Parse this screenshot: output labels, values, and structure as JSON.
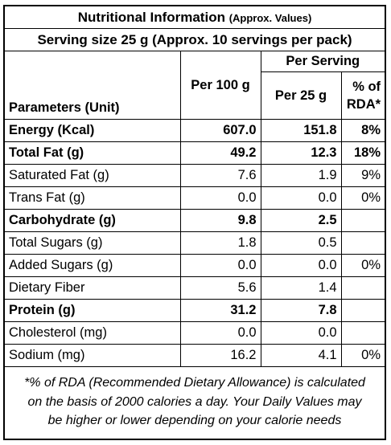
{
  "title": "Nutritional Information",
  "title_note": "(Approx. Values)",
  "serving": "Serving size 25 g (Approx. 10 servings per pack)",
  "headers": {
    "parameters": "Parameters (Unit)",
    "per_100g": "Per 100 g",
    "per_serving": "Per Serving",
    "per_25g": "Per 25 g",
    "rda_line1": "% of",
    "rda_line2": "RDA*"
  },
  "rows": [
    {
      "name": "Energy (Kcal)",
      "per100": "607.0",
      "per25": "151.8",
      "rda": "8%",
      "bold": true
    },
    {
      "name": "Total Fat (g)",
      "per100": "49.2",
      "per25": "12.3",
      "rda": "18%",
      "bold": true
    },
    {
      "name": "Saturated Fat (g)",
      "per100": "7.6",
      "per25": "1.9",
      "rda": "9%",
      "bold": false
    },
    {
      "name": "Trans Fat (g)",
      "per100": "0.0",
      "per25": "0.0",
      "rda": "0%",
      "bold": false
    },
    {
      "name": "Carbohydrate (g)",
      "per100": "9.8",
      "per25": "2.5",
      "rda": "",
      "bold": true
    },
    {
      "name": "Total Sugars (g)",
      "per100": "1.8",
      "per25": "0.5",
      "rda": "",
      "bold": false
    },
    {
      "name": "Added Sugars (g)",
      "per100": "0.0",
      "per25": "0.0",
      "rda": "0%",
      "bold": false
    },
    {
      "name": "Dietary Fiber",
      "per100": "5.6",
      "per25": "1.4",
      "rda": "",
      "bold": false
    },
    {
      "name": "Protein (g)",
      "per100": "31.2",
      "per25": "7.8",
      "rda": "",
      "bold": true
    },
    {
      "name": "Cholesterol (mg)",
      "per100": "0.0",
      "per25": "0.0",
      "rda": "",
      "bold": false
    },
    {
      "name": "Sodium (mg)",
      "per100": "16.2",
      "per25": "4.1",
      "rda": "0%",
      "bold": false
    }
  ],
  "footnote": {
    "line1": "*% of RDA (Recommended Dietary Allowance) is calculated",
    "line2": "on the basis of 2000 calories a day. Your Daily Values may",
    "line3": "be higher or lower depending on your calorie needs"
  }
}
